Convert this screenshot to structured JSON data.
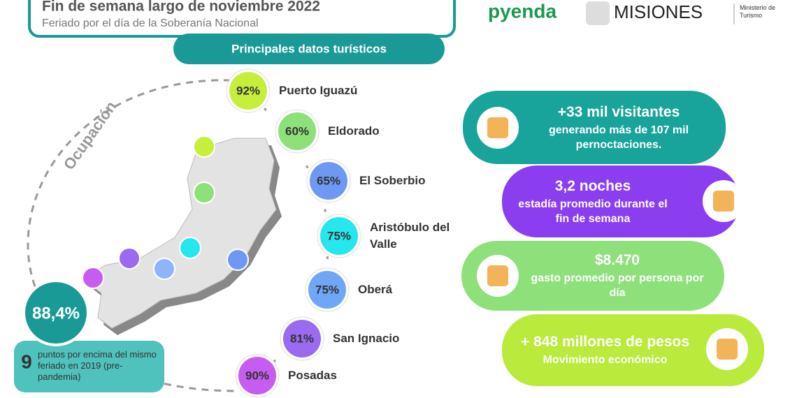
{
  "header": {
    "title": "Fin de semana largo de noviembre 2022",
    "subtitle": "Feriado por el día de la Soberanía Nacional"
  },
  "logos": {
    "pyenda": "pyenda",
    "misiones": "MISIONES",
    "ministry": "Ministerio de Turismo"
  },
  "section_title": "Principales datos turísticos",
  "occupation": {
    "label": "Ocupación",
    "total": "88,4%",
    "note_number": "9",
    "note": "puntos por encima del mismo feriado en 2019 (pre-pandemia)"
  },
  "cities": [
    {
      "value": "92%",
      "name": "Puerto Iguazú"
    },
    {
      "value": "60%",
      "name": "Eldorado"
    },
    {
      "value": "65%",
      "name": "El Soberbio"
    },
    {
      "value": "75%",
      "name": "Aristóbulo del Valle"
    },
    {
      "value": "75%",
      "name": "Oberá"
    },
    {
      "value": "81%",
      "name": "San Ignacio"
    },
    {
      "value": "90%",
      "name": "Posadas"
    }
  ],
  "cards": [
    {
      "headline": "+33 mil visitantes",
      "text": "generando más de 107 mil pernoctaciones."
    },
    {
      "headline": "3,2 noches",
      "text": "estadía promedio durante el fin de semana"
    },
    {
      "headline": "$8.470",
      "text": "gasto promedio por persona por día"
    },
    {
      "headline": "+ 848 millones de pesos",
      "text": "Movimiento económico"
    }
  ]
}
